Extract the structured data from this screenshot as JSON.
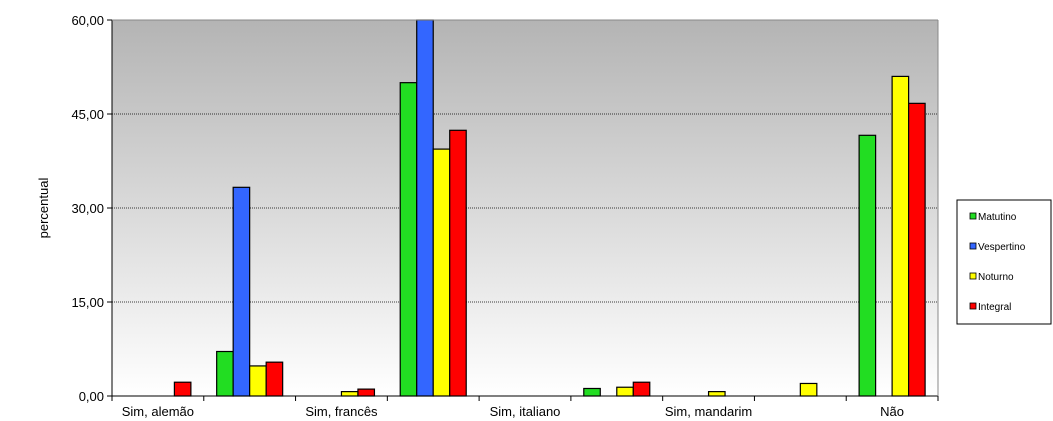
{
  "chart_data": {
    "type": "bar",
    "ylabel": "percentual",
    "xlabel": "",
    "ylim": [
      0,
      60
    ],
    "yticks": [
      0,
      15,
      30,
      45,
      60
    ],
    "ytick_labels": [
      "0,00",
      "15,00",
      "30,00",
      "45,00",
      "60,00"
    ],
    "categories": [
      "Sim, alemão",
      "",
      "Sim, francês",
      "",
      "Sim, italiano",
      "",
      "Sim, mandarim",
      "",
      "Não"
    ],
    "series": [
      {
        "name": "Matutino",
        "color": "#22dd22",
        "values": [
          0,
          7.1,
          0,
          50.0,
          0,
          1.2,
          0,
          0,
          41.6
        ]
      },
      {
        "name": "Vespertino",
        "color": "#3366ff",
        "values": [
          0,
          33.3,
          0,
          60.0,
          0,
          0,
          0,
          0,
          0
        ]
      },
      {
        "name": "Noturno",
        "color": "#ffff00",
        "values": [
          0,
          4.8,
          0.7,
          39.4,
          0,
          1.4,
          0.7,
          2.0,
          51.0
        ]
      },
      {
        "name": "Integral",
        "color": "#ff0000",
        "values": [
          2.2,
          5.4,
          1.1,
          42.4,
          0,
          2.2,
          0,
          0,
          46.7
        ]
      }
    ],
    "grid": true,
    "legend": "right"
  }
}
